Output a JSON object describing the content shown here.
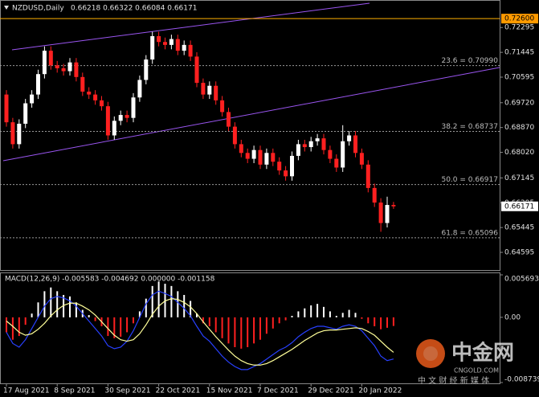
{
  "chart_data": [
    {
      "type": "candlestick",
      "title": "NZDUSD,Daily",
      "ohlc_text": "0.66218 0.66322 0.66084 0.66171",
      "categories": [
        "17 Aug 2021",
        null,
        null,
        null,
        null,
        null,
        null,
        null,
        "8 Sep 2021",
        null,
        null,
        null,
        null,
        null,
        null,
        null,
        "30 Sep 2021",
        null,
        null,
        null,
        null,
        null,
        null,
        null,
        "22 Oct 2021",
        null,
        null,
        null,
        null,
        null,
        null,
        null,
        "15 Nov 2021",
        null,
        null,
        null,
        null,
        null,
        null,
        null,
        "7 Dec 2021",
        null,
        null,
        null,
        null,
        null,
        null,
        null,
        "29 Dec 2021",
        null,
        null,
        null,
        null,
        null,
        null,
        null,
        "20 Jan 2022",
        null,
        null,
        null,
        null,
        null
      ],
      "open": [
        0.7,
        0.6905,
        0.683,
        0.69,
        0.697,
        0.7,
        0.707,
        0.715,
        0.71,
        0.709,
        0.708,
        0.711,
        0.706,
        0.701,
        0.7,
        0.698,
        0.696,
        0.686,
        0.691,
        0.693,
        0.692,
        0.699,
        0.705,
        0.712,
        0.72,
        0.718,
        0.717,
        0.719,
        0.715,
        0.717,
        0.713,
        0.704,
        0.7,
        0.703,
        0.698,
        0.694,
        0.689,
        0.683,
        0.68,
        0.678,
        0.681,
        0.676,
        0.68,
        0.677,
        0.674,
        0.672,
        0.679,
        0.683,
        0.682,
        0.684,
        0.685,
        0.681,
        0.678,
        0.675,
        0.684,
        0.686,
        0.68,
        0.676,
        0.668,
        0.663,
        0.656,
        0.66218
      ],
      "high": [
        0.7015,
        0.692,
        0.6915,
        0.6985,
        0.7015,
        0.7085,
        0.7165,
        0.7165,
        0.7115,
        0.7105,
        0.7125,
        0.7125,
        0.7075,
        0.7025,
        0.7015,
        0.6995,
        0.6975,
        0.6925,
        0.6945,
        0.6945,
        0.7005,
        0.7065,
        0.7135,
        0.7215,
        0.7215,
        0.7195,
        0.7205,
        0.7205,
        0.7185,
        0.7185,
        0.7145,
        0.7055,
        0.7045,
        0.7045,
        0.6995,
        0.6955,
        0.6905,
        0.6845,
        0.6815,
        0.6825,
        0.6825,
        0.6815,
        0.6815,
        0.6785,
        0.6755,
        0.6805,
        0.6845,
        0.6845,
        0.6855,
        0.6865,
        0.6865,
        0.6825,
        0.6795,
        0.6895,
        0.6875,
        0.6875,
        0.6815,
        0.6775,
        0.6695,
        0.6645,
        0.665,
        0.66322
      ],
      "low": [
        0.689,
        0.6815,
        0.6815,
        0.6885,
        0.6955,
        0.6985,
        0.7055,
        0.7085,
        0.7075,
        0.7065,
        0.7065,
        0.7045,
        0.6995,
        0.6985,
        0.6965,
        0.6945,
        0.6845,
        0.6845,
        0.6895,
        0.6905,
        0.6905,
        0.6975,
        0.7035,
        0.7105,
        0.7165,
        0.7155,
        0.7155,
        0.7135,
        0.7135,
        0.7115,
        0.7025,
        0.6985,
        0.6985,
        0.6965,
        0.6925,
        0.6875,
        0.6815,
        0.6785,
        0.6765,
        0.6765,
        0.6745,
        0.6745,
        0.6755,
        0.6725,
        0.6705,
        0.6705,
        0.6775,
        0.6805,
        0.6805,
        0.6825,
        0.6795,
        0.6765,
        0.6735,
        0.6735,
        0.6825,
        0.6785,
        0.6745,
        0.6665,
        0.6615,
        0.653,
        0.6545,
        0.66084
      ],
      "close": [
        0.6905,
        0.683,
        0.69,
        0.697,
        0.7,
        0.707,
        0.715,
        0.71,
        0.709,
        0.708,
        0.711,
        0.706,
        0.701,
        0.7,
        0.698,
        0.696,
        0.686,
        0.691,
        0.693,
        0.692,
        0.699,
        0.705,
        0.712,
        0.72,
        0.718,
        0.717,
        0.719,
        0.715,
        0.717,
        0.713,
        0.704,
        0.7,
        0.703,
        0.698,
        0.694,
        0.689,
        0.683,
        0.68,
        0.678,
        0.681,
        0.676,
        0.68,
        0.677,
        0.674,
        0.672,
        0.679,
        0.683,
        0.682,
        0.684,
        0.685,
        0.681,
        0.678,
        0.675,
        0.684,
        0.686,
        0.68,
        0.676,
        0.668,
        0.663,
        0.656,
        0.66218,
        0.66171
      ],
      "up_color": "#ffffff",
      "down_color": "#ff2020",
      "ylim": [
        0.6399,
        0.7321
      ],
      "yticks": [
        0.72295,
        0.71445,
        0.70595,
        {
          "value": 0.6972,
          "label": "0.69720"
        },
        {
          "value": 0.6887,
          "label": "0.68870"
        },
        {
          "value": 0.6802,
          "label": "0.68020"
        },
        0.67145,
        0.66295,
        0.65445,
        0.64595
      ],
      "levels": [
        {
          "text": "23.6 = 0.70990",
          "value": 0.7099
        },
        {
          "text": "38.2 = 0.68737",
          "value": 0.68737
        },
        {
          "text": "50.0 = 0.66917",
          "value": 0.66917
        },
        {
          "text": "61.8 = 0.65096",
          "value": 0.65096
        }
      ],
      "highlight_level": {
        "value": 0.726,
        "label": "0.72600"
      },
      "last_price": 0.66171,
      "watermark": {
        "brand": "中金网",
        "site": "CNGOLD.COM",
        "slogan": "中 文 财 经 新 媒 体"
      }
    },
    {
      "type": "macd",
      "title": "MACD(12,26,9) -0.005583 -0.004692 0.000000 -0.001158",
      "histogram": [
        -0.002,
        -0.003,
        -0.0025,
        -0.001,
        0.0005,
        0.002,
        0.0035,
        0.004,
        0.0035,
        0.003,
        0.0028,
        0.002,
        0.001,
        0.0003,
        -0.0005,
        -0.0012,
        -0.0025,
        -0.0028,
        -0.0026,
        -0.002,
        -0.0008,
        0.0008,
        0.0025,
        0.0042,
        0.0048,
        0.0045,
        0.0042,
        0.0035,
        0.003,
        0.0022,
        0.0005,
        -0.0008,
        -0.0012,
        -0.002,
        -0.0028,
        -0.0035,
        -0.004,
        -0.0042,
        -0.004,
        -0.0035,
        -0.003,
        -0.0022,
        -0.0015,
        -0.0008,
        -0.0004,
        0.0002,
        0.0008,
        0.0012,
        0.0016,
        0.0018,
        0.0014,
        0.0008,
        0.0002,
        0.0006,
        0.001,
        0.0006,
        -0.0002,
        -0.0008,
        -0.0012,
        -0.0016,
        -0.0014,
        -0.001158
      ],
      "pos_color": "#ffffff",
      "neg_color": "#ff2020",
      "series": [
        {
          "color": "#2840ff",
          "values": [
            -0.002,
            -0.0035,
            -0.004,
            -0.003,
            -0.0015,
            0,
            0.0015,
            0.0025,
            0.0028,
            0.0026,
            0.0022,
            0.0015,
            0.0005,
            -0.0005,
            -0.0015,
            -0.0025,
            -0.0038,
            -0.0042,
            -0.004,
            -0.0032,
            -0.0018,
            0,
            0.0018,
            0.003,
            0.0035,
            0.0032,
            0.0028,
            0.002,
            0.0012,
            0.0002,
            -0.0012,
            -0.0025,
            -0.0032,
            -0.0042,
            -0.0052,
            -0.006,
            -0.0066,
            -0.007,
            -0.007,
            -0.0066,
            -0.0062,
            -0.0056,
            -0.005,
            -0.0044,
            -0.004,
            -0.0034,
            -0.0026,
            -0.002,
            -0.0015,
            -0.0012,
            -0.0012,
            -0.0014,
            -0.0016,
            -0.0012,
            -0.001,
            -0.0012,
            -0.0018,
            -0.0028,
            -0.0038,
            -0.0052,
            -0.0058,
            -0.005583
          ]
        },
        {
          "color": "#ffff99",
          "values": [
            -0.0005,
            -0.0012,
            -0.002,
            -0.0024,
            -0.0022,
            -0.0016,
            -0.0008,
            0.0002,
            0.001,
            0.0016,
            0.0019,
            0.0019,
            0.0015,
            0.001,
            0.0003,
            -0.0006,
            -0.0015,
            -0.0024,
            -0.003,
            -0.0032,
            -0.003,
            -0.0022,
            -0.001,
            0.0004,
            0.0015,
            0.0022,
            0.0025,
            0.0024,
            0.002,
            0.0014,
            0.0005,
            -0.0006,
            -0.0016,
            -0.0026,
            -0.0035,
            -0.0044,
            -0.0052,
            -0.0058,
            -0.0062,
            -0.0064,
            -0.0064,
            -0.0062,
            -0.0058,
            -0.0053,
            -0.0048,
            -0.0043,
            -0.0037,
            -0.0031,
            -0.0026,
            -0.0021,
            -0.0018,
            -0.0017,
            -0.0017,
            -0.0016,
            -0.0015,
            -0.0014,
            -0.0015,
            -0.0019,
            -0.0024,
            -0.0032,
            -0.004,
            -0.004692
          ]
        }
      ],
      "ylim": [
        -0.008739,
        0.005693
      ],
      "yticks": [
        0.005693,
        {
          "value": 0,
          "label": "0.00"
        },
        -0.008739
      ]
    }
  ]
}
